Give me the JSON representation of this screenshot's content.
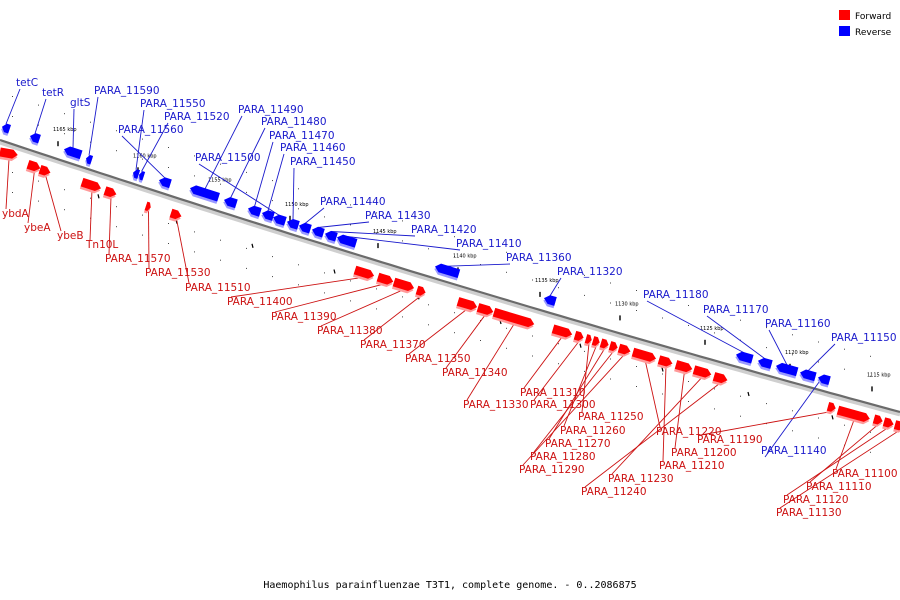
{
  "caption": "Haemophilus parainfluenzae T3T1, complete genome. - 0..2086875",
  "legend": {
    "forward": {
      "label": "Forward",
      "color": "#ff0000"
    },
    "reverse": {
      "label": "Reverse",
      "color": "#0000ff"
    }
  },
  "colors": {
    "forward": "#ff0000",
    "forward_shade": "#ff9a9a",
    "reverse": "#0000ff",
    "reverse_shade": "#9a9aff",
    "backbone": "#6b6b6b"
  },
  "scale": {
    "unit": "kbp",
    "tick_values": [
      1165,
      1160,
      1155,
      1150,
      1145,
      1140,
      1135,
      1130,
      1125,
      1120,
      1115
    ]
  },
  "genes": {
    "reverse": [
      "tetC",
      "tetR",
      "gltS",
      "PARA_11590",
      "PARA_11550",
      "PARA_11520",
      "PARA_11560",
      "PARA_11490",
      "PARA_11480",
      "PARA_11470",
      "PARA_11460",
      "PARA_11500",
      "PARA_11450",
      "PARA_11440",
      "PARA_11430",
      "PARA_11420",
      "PARA_11410",
      "PARA_11360",
      "PARA_11320",
      "PARA_11180",
      "PARA_11170",
      "PARA_11160",
      "PARA_11150",
      "PARA_11140"
    ],
    "forward": [
      "ybdA",
      "ybeA",
      "ybeB",
      "Tn10L",
      "PARA_11570",
      "PARA_11530",
      "PARA_11510",
      "PARA_11400",
      "PARA_11390",
      "PARA_11380",
      "PARA_11370",
      "PARA_11350",
      "PARA_11340",
      "PARA_11330",
      "PARA_11310",
      "PARA_11300",
      "PARA_11250",
      "PARA_11260",
      "PARA_11270",
      "PARA_11280",
      "PARA_11290",
      "PARA_11220",
      "PARA_11210",
      "PARA_11200",
      "PARA_11230",
      "PARA_11240",
      "PARA_11190",
      "PARA_11100",
      "PARA_11110",
      "PARA_11120",
      "PARA_11130"
    ]
  }
}
